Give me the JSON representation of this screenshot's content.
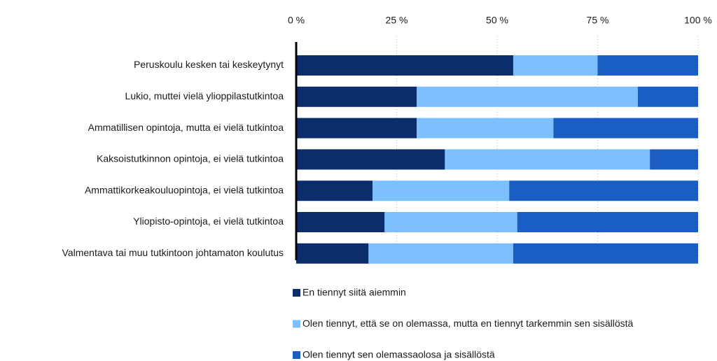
{
  "chart_data": {
    "type": "stacked_bar_horizontal",
    "categories": [
      "Peruskoulu kesken tai keskeytynyt",
      "Lukio, muttei vielä ylioppilastutkintoa",
      "Ammatillisen opintoja, mutta ei vielä tutkintoa",
      "Kaksoistutkinnon opintoja, ei vielä tutkintoa",
      "Ammattikorkeakouluopintoja, ei vielä tutkintoa",
      "Yliopisto-opintoja, ei vielä tutkintoa",
      "Valmentava tai muu tutkintoon johtamaton koulutus"
    ],
    "series": [
      {
        "name": "En tiennyt siitä aiemmin",
        "color": "#0b2d6b",
        "values": [
          54,
          30,
          30,
          37,
          19,
          22,
          18
        ]
      },
      {
        "name": "Olen tiennyt, että se on olemassa, mutta en tiennyt tarkemmin sen sisällöstä",
        "color": "#7cc0ff",
        "values": [
          21,
          55,
          34,
          51,
          34,
          33,
          36
        ]
      },
      {
        "name": "Olen tiennyt sen olemassaolosa ja sisällöstä",
        "color": "#1a5ec4",
        "values": [
          25,
          15,
          36,
          12,
          47,
          45,
          46
        ]
      }
    ],
    "xlim": [
      0,
      100
    ],
    "xticks": [
      {
        "value": 0,
        "label": "0 %"
      },
      {
        "value": 25,
        "label": "25 %"
      },
      {
        "value": 50,
        "label": "50 %"
      },
      {
        "value": 75,
        "label": "75 %"
      },
      {
        "value": 100,
        "label": "100 %"
      }
    ],
    "grid": true,
    "legend": "bottom"
  }
}
